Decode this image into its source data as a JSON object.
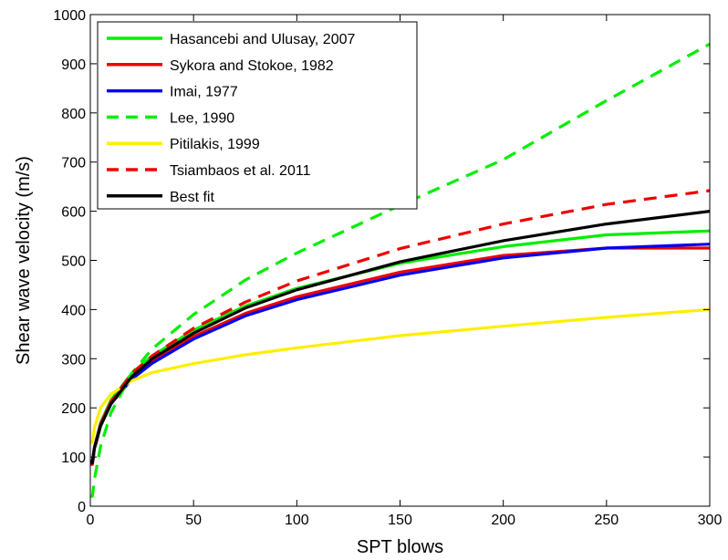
{
  "chart_data": {
    "type": "line",
    "xlabel": "SPT blows",
    "ylabel": "Shear wave velocity (m/s)",
    "xlim": [
      0,
      300
    ],
    "ylim": [
      0,
      1000
    ],
    "xticks": [
      0,
      50,
      100,
      150,
      200,
      250,
      300
    ],
    "yticks": [
      0,
      100,
      200,
      300,
      400,
      500,
      600,
      700,
      800,
      900,
      1000
    ],
    "grid": false,
    "legend_position": "top-left",
    "x": [
      1,
      2,
      5,
      10,
      20,
      30,
      50,
      75,
      100,
      150,
      200,
      250,
      300
    ],
    "series": [
      {
        "name": "Hasancebi and Ulusay, 2007",
        "color": "#00ee00",
        "dash": "solid",
        "values": [
          90,
          120,
          170,
          216,
          270,
          306,
          358,
          407,
          443,
          494,
          528,
          552,
          560
        ]
      },
      {
        "name": "Sykora and Stokoe, 1982",
        "color": "#ee0000",
        "dash": "solid",
        "values": [
          92,
          120,
          168,
          212,
          262,
          296,
          345,
          392,
          426,
          476,
          510,
          525,
          525
        ]
      },
      {
        "name": "Imai, 1977",
        "color": "#0000ee",
        "dash": "solid",
        "values": [
          92,
          119,
          165,
          208,
          258,
          291,
          340,
          387,
          420,
          470,
          505,
          525,
          533
        ]
      },
      {
        "name": "Lee, 1990",
        "color": "#00ee00",
        "dash": "dashed",
        "values": [
          20,
          55,
          122,
          190,
          270,
          320,
          390,
          460,
          515,
          612,
          705,
          825,
          940
        ]
      },
      {
        "name": "Pitilakis, 1999",
        "color": "#ffee00",
        "dash": "solid",
        "values": [
          130,
          160,
          200,
          228,
          255,
          272,
          290,
          308,
          322,
          347,
          366,
          384,
          400
        ]
      },
      {
        "name": "Tsiambaos et al. 2011",
        "color": "#ee0000",
        "dash": "dashed",
        "values": [
          85,
          115,
          165,
          212,
          270,
          306,
          362,
          415,
          458,
          524,
          574,
          614,
          642
        ]
      },
      {
        "name": "Best fit",
        "color": "#000000",
        "dash": "solid",
        "values": [
          88,
          117,
          163,
          208,
          263,
          300,
          352,
          403,
          440,
          497,
          540,
          574,
          600
        ]
      }
    ]
  }
}
